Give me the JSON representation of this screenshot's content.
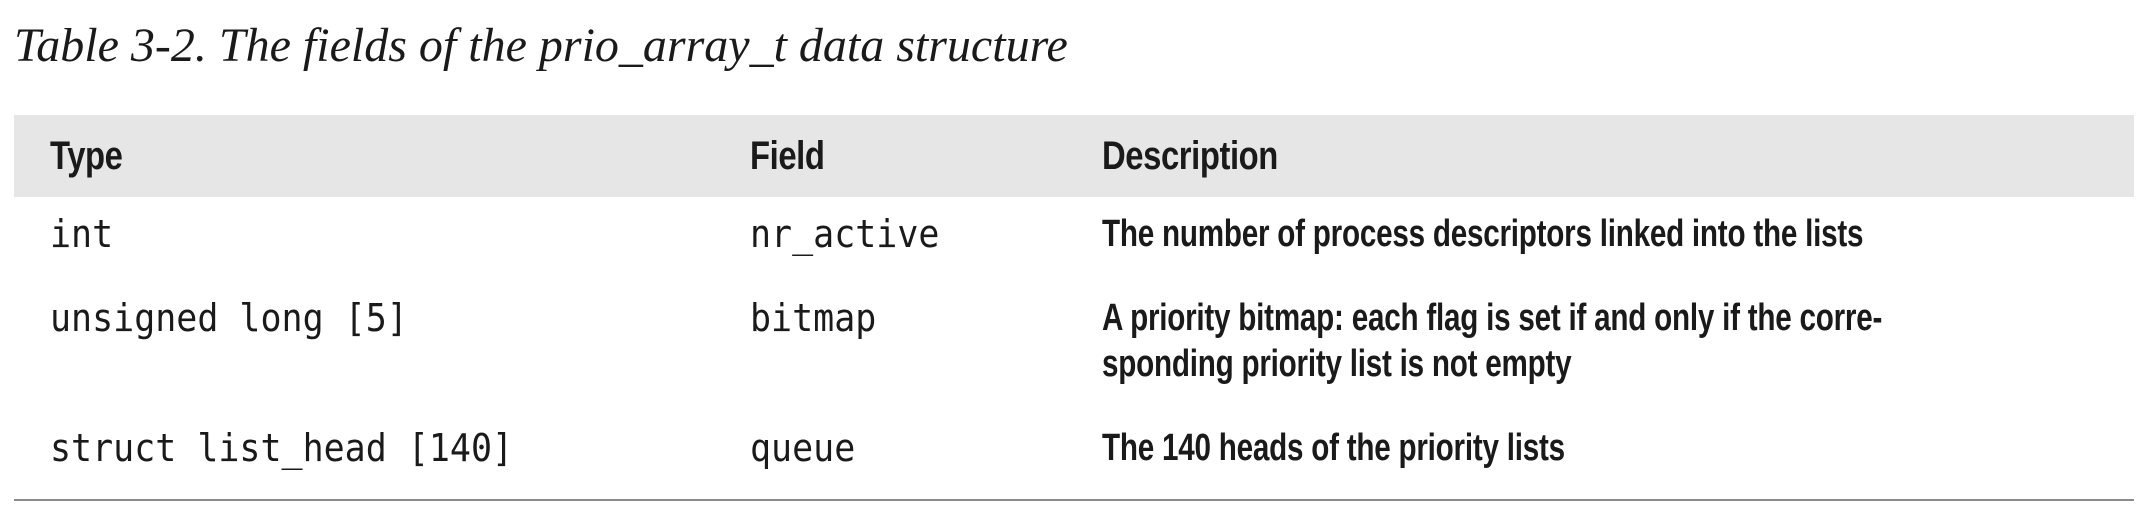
{
  "caption": "Table 3-2. The fields of the prio_array_t data structure",
  "table": {
    "headers": {
      "type": "Type",
      "field": "Field",
      "description": "Description"
    },
    "rows": [
      {
        "type": "int",
        "field": "nr_active",
        "description": "The number of process descriptors linked into the lists"
      },
      {
        "type": "unsigned long [5]",
        "field": "bitmap",
        "description_line1": "A priority bitmap: each flag is set if and only if the corre-",
        "description_line2": "sponding priority list is not empty"
      },
      {
        "type": "struct list_head [140]",
        "field": "queue",
        "description": "The 140 heads of the priority lists"
      }
    ]
  }
}
